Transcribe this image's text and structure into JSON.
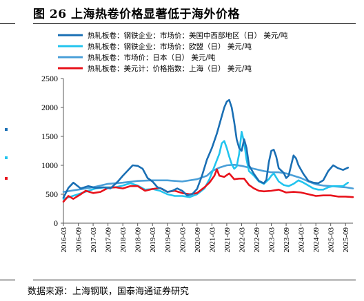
{
  "figure": {
    "title": "图 26  上海热卷价格显著低于海外价格",
    "source": "数据来源：上海钢联，国泰海通证券研究"
  },
  "colors": {
    "series_us": "#1a6fb4",
    "series_eu": "#22c4ee",
    "series_jp": "#4a9fd8",
    "series_sh": "#e8121b",
    "axis": "#595959"
  },
  "chart_data": {
    "type": "line",
    "title": "",
    "xlabel": "",
    "ylabel": "",
    "ylim": [
      0,
      2500
    ],
    "yticks": [
      0,
      500,
      1000,
      1500,
      2000,
      2500
    ],
    "xlim": [
      "2016-03",
      "2025-12"
    ],
    "xticks": [
      "2016-03",
      "2016-09",
      "2017-03",
      "2017-09",
      "2018-03",
      "2018-09",
      "2019-03",
      "2019-09",
      "2020-03",
      "2020-09",
      "2021-03",
      "2021-09",
      "2022-03",
      "2022-09",
      "2023-03",
      "2023-09",
      "2024-03",
      "2024-09",
      "2025-03",
      "2025-09"
    ],
    "legend_position": "top",
    "grid": false,
    "series": [
      {
        "name": "热轧板卷：钢铁企业：市场价：美国中西部地区（日） 美元/吨",
        "color": "#1a6fb4",
        "x": [
          "2016-03",
          "2016-05",
          "2016-07",
          "2016-10",
          "2017-01",
          "2017-04",
          "2017-07",
          "2017-10",
          "2018-01",
          "2018-03",
          "2018-05",
          "2018-07",
          "2018-09",
          "2018-11",
          "2019-01",
          "2019-03",
          "2019-05",
          "2019-07",
          "2019-09",
          "2019-11",
          "2020-01",
          "2020-03",
          "2020-05",
          "2020-07",
          "2020-09",
          "2020-11",
          "2021-01",
          "2021-03",
          "2021-05",
          "2021-07",
          "2021-08",
          "2021-09",
          "2021-10",
          "2021-11",
          "2021-12",
          "2022-01",
          "2022-02",
          "2022-03",
          "2022-04",
          "2022-05",
          "2022-06",
          "2022-08",
          "2022-10",
          "2022-12",
          "2023-01",
          "2023-02",
          "2023-03",
          "2023-04",
          "2023-05",
          "2023-06",
          "2023-08",
          "2023-09",
          "2023-10",
          "2023-11",
          "2023-12",
          "2024-01",
          "2024-02",
          "2024-04",
          "2024-06",
          "2024-08",
          "2024-10",
          "2024-12",
          "2025-01",
          "2025-02",
          "2025-04",
          "2025-06",
          "2025-08",
          "2025-10"
        ],
        "values": [
          440,
          610,
          700,
          600,
          640,
          610,
          620,
          600,
          720,
          820,
          910,
          1000,
          990,
          940,
          780,
          720,
          620,
          590,
          540,
          560,
          600,
          560,
          480,
          500,
          590,
          820,
          1100,
          1300,
          1550,
          1850,
          2000,
          2100,
          2130,
          2000,
          1750,
          1450,
          1300,
          1250,
          1450,
          1300,
          1000,
          850,
          730,
          690,
          750,
          1050,
          1250,
          1270,
          1150,
          950,
          870,
          780,
          820,
          1000,
          1170,
          1120,
          1000,
          850,
          730,
          700,
          690,
          740,
          820,
          900,
          1000,
          950,
          920,
          960
        ]
      },
      {
        "name": "热轧板卷：钢铁企业：市场价：欧盟（日） 美元/吨",
        "color": "#22c4ee",
        "x": [
          "2016-03",
          "2016-06",
          "2016-09",
          "2017-01",
          "2017-04",
          "2017-08",
          "2017-12",
          "2018-03",
          "2018-06",
          "2018-09",
          "2018-12",
          "2019-03",
          "2019-06",
          "2019-09",
          "2019-12",
          "2020-03",
          "2020-06",
          "2020-09",
          "2020-12",
          "2021-02",
          "2021-04",
          "2021-06",
          "2021-07",
          "2021-08",
          "2021-09",
          "2021-10",
          "2021-11",
          "2021-12",
          "2022-01",
          "2022-02",
          "2022-03",
          "2022-04",
          "2022-05",
          "2022-06",
          "2022-08",
          "2022-10",
          "2022-12",
          "2023-02",
          "2023-03",
          "2023-04",
          "2023-06",
          "2023-08",
          "2023-10",
          "2023-12",
          "2024-02",
          "2024-04",
          "2024-06",
          "2024-08",
          "2024-10",
          "2024-12",
          "2025-02",
          "2025-04",
          "2025-06",
          "2025-08",
          "2025-10"
        ],
        "values": [
          420,
          460,
          500,
          560,
          600,
          620,
          620,
          650,
          690,
          650,
          580,
          590,
          560,
          500,
          470,
          470,
          450,
          500,
          600,
          760,
          980,
          1200,
          1380,
          1420,
          1300,
          1150,
          1020,
          940,
          980,
          1200,
          1580,
          1400,
          1100,
          900,
          820,
          720,
          680,
          760,
          820,
          860,
          720,
          660,
          640,
          680,
          740,
          700,
          650,
          600,
          580,
          580,
          620,
          640,
          640,
          640,
          700
        ]
      },
      {
        "name": "热轧板卷：市场价：日本（日） 美元/吨",
        "color": "#4a9fd8",
        "x": [
          "2016-03",
          "2016-09",
          "2017-03",
          "2017-09",
          "2018-03",
          "2018-09",
          "2019-03",
          "2019-09",
          "2020-03",
          "2020-09",
          "2021-01",
          "2021-03",
          "2021-06",
          "2021-09",
          "2021-12",
          "2022-03",
          "2022-06",
          "2022-09",
          "2022-12",
          "2023-03",
          "2023-06",
          "2023-09",
          "2023-12",
          "2024-03",
          "2024-06",
          "2024-09",
          "2024-12",
          "2025-03",
          "2025-06",
          "2025-09",
          "2025-12"
        ],
        "values": [
          540,
          580,
          620,
          680,
          700,
          730,
          740,
          740,
          720,
          760,
          820,
          900,
          960,
          1000,
          1010,
          990,
          960,
          930,
          900,
          880,
          880,
          860,
          820,
          780,
          720,
          670,
          650,
          640,
          630,
          620,
          600
        ]
      },
      {
        "name": "热轧板卷：美元计：价格指数：上海（日） 美元/吨",
        "color": "#e8121b",
        "x": [
          "2016-03",
          "2016-05",
          "2016-07",
          "2016-10",
          "2016-12",
          "2017-03",
          "2017-06",
          "2017-09",
          "2017-12",
          "2018-03",
          "2018-06",
          "2018-09",
          "2018-12",
          "2019-03",
          "2019-06",
          "2019-09",
          "2019-12",
          "2020-03",
          "2020-06",
          "2020-09",
          "2020-12",
          "2021-02",
          "2021-04",
          "2021-05",
          "2021-06",
          "2021-08",
          "2021-10",
          "2021-12",
          "2022-02",
          "2022-04",
          "2022-06",
          "2022-08",
          "2022-10",
          "2022-12",
          "2023-03",
          "2023-06",
          "2023-09",
          "2023-12",
          "2024-03",
          "2024-06",
          "2024-09",
          "2024-12",
          "2025-03",
          "2025-06",
          "2025-09",
          "2025-12"
        ],
        "values": [
          370,
          470,
          420,
          500,
          560,
          520,
          540,
          610,
          620,
          600,
          640,
          640,
          560,
          590,
          610,
          540,
          560,
          520,
          500,
          520,
          620,
          700,
          820,
          930,
          820,
          800,
          860,
          760,
          770,
          770,
          660,
          600,
          560,
          550,
          560,
          580,
          530,
          540,
          530,
          500,
          470,
          480,
          480,
          460,
          460,
          450
        ]
      }
    ]
  }
}
